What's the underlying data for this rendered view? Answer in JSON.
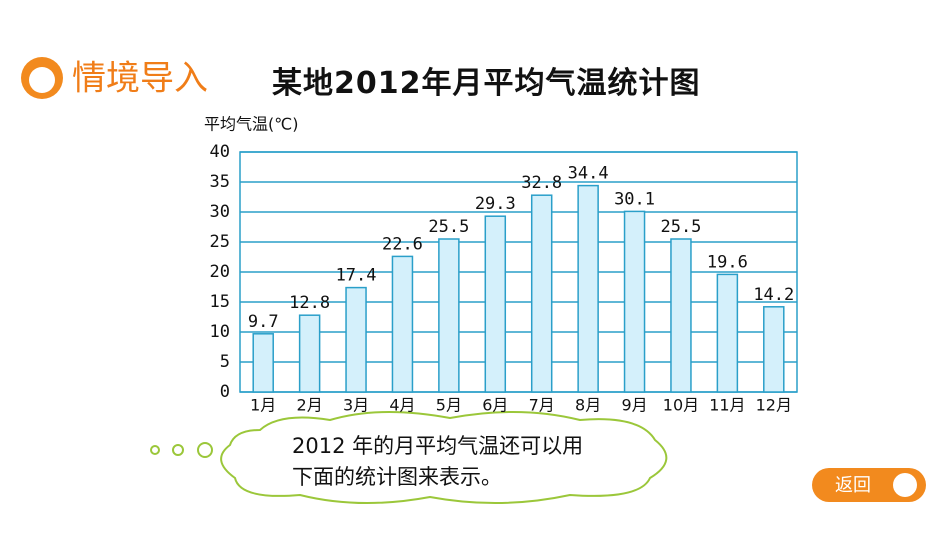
{
  "header": {
    "title": "情境导入"
  },
  "chart_data": {
    "type": "bar",
    "title": "某地2012年月平均气温统计图",
    "y_label": "平均气温(℃)",
    "categories": [
      "1月",
      "2月",
      "3月",
      "4月",
      "5月",
      "6月",
      "7月",
      "8月",
      "9月",
      "10月",
      "11月",
      "12月"
    ],
    "values": [
      9.7,
      12.8,
      17.4,
      22.6,
      25.5,
      29.3,
      32.8,
      34.4,
      30.1,
      25.5,
      19.6,
      14.2
    ],
    "color": "#d4f0fb",
    "edge_color": "#2a9fc9",
    "ylim": [
      0,
      40
    ],
    "yticks": [
      0,
      5,
      10,
      15,
      20,
      25,
      30,
      35,
      40
    ],
    "grid": true
  },
  "bubble": {
    "lines": [
      "2012 年的月平均气温还可以用",
      "下面的统计图来表示。"
    ]
  },
  "button": {
    "label": "返回"
  }
}
